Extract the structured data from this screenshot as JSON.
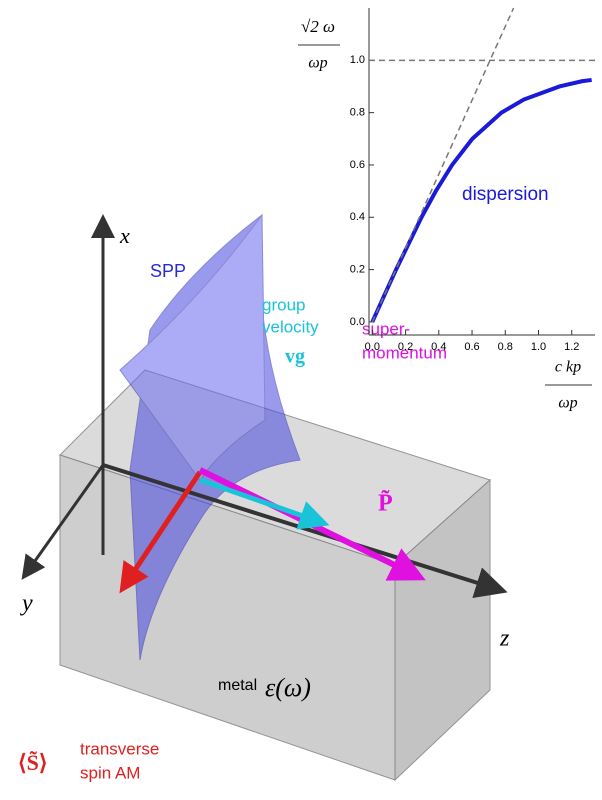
{
  "chart_data": {
    "type": "line",
    "y_label": {
      "numerator": "√2 ω",
      "denominator": "ωp"
    },
    "x_label": {
      "numerator": "c kp",
      "denominator": "ωp"
    },
    "annotation": "dispersion",
    "xlim": [
      -0.02,
      1.34
    ],
    "ylim": [
      -0.05,
      1.2
    ],
    "xticks": [
      {
        "value": 0,
        "label": "0.0"
      },
      {
        "value": 0.2,
        "label": "0.2"
      },
      {
        "value": 0.4,
        "label": "0.4"
      },
      {
        "value": 0.6,
        "label": "0.6"
      },
      {
        "value": 0.8,
        "label": "0.8"
      },
      {
        "value": 1,
        "label": "1.0"
      },
      {
        "value": 1.2,
        "label": "1.2"
      }
    ],
    "yticks": [
      {
        "value": 0,
        "label": "0.0"
      },
      {
        "value": 0.2,
        "label": "0.2"
      },
      {
        "value": 0.4,
        "label": "0.4"
      },
      {
        "value": 0.6,
        "label": "0.6"
      },
      {
        "value": 0.8,
        "label": "0.8"
      },
      {
        "value": 1,
        "label": "1.0"
      }
    ],
    "series": [
      {
        "color": "#1a1adb",
        "dash": false,
        "x": [
          0,
          0.0709,
          0.1429,
          0.296,
          0.382,
          0.48,
          0.602,
          0.777,
          0.912,
          1.126,
          1.261,
          1.32
        ],
        "values": [
          0,
          0.1,
          0.2,
          0.4,
          0.5,
          0.6,
          0.7,
          0.8,
          0.85,
          0.9,
          0.92,
          0.925
        ]
      },
      {
        "color": "#777777",
        "dash": true,
        "x": [
          0,
          0.85
        ],
        "values": [
          0,
          1.2
        ]
      },
      {
        "color": "#777777",
        "dash": true,
        "x": [
          -0.02,
          1.34
        ],
        "values": [
          1,
          1
        ]
      }
    ]
  },
  "diagram": {
    "axis_x": "x",
    "axis_y": "y",
    "axis_z": "z",
    "spp": "SPP",
    "group_velocity": [
      "group",
      "velocity"
    ],
    "vg": "vg",
    "super_momentum": [
      "super-",
      "momentum"
    ],
    "p": "P̃",
    "metal": "metal",
    "epsilon": "ε(ω)",
    "s": "⟨S̃⟩",
    "spin": [
      "transverse",
      "spin AM"
    ]
  }
}
